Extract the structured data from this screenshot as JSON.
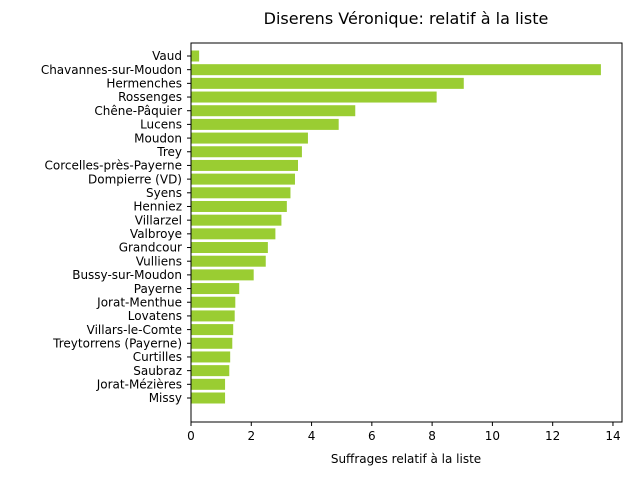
{
  "chart_data": {
    "type": "bar",
    "orientation": "horizontal",
    "title": "Diserens Véronique: relatif à la liste",
    "xlabel": "Suffrages relatif à la liste",
    "ylabel": "",
    "bar_color": "#9acd32",
    "xlim": [
      0,
      14.3
    ],
    "xticks": [
      0,
      2,
      4,
      6,
      8,
      10,
      12,
      14
    ],
    "grid": false,
    "categories": [
      "Vaud",
      "Chavannes-sur-Moudon",
      "Hermenches",
      "Rossenges",
      "Chêne-Pâquier",
      "Lucens",
      "Moudon",
      "Trey",
      "Corcelles-près-Payerne",
      "Dompierre (VD)",
      "Syens",
      "Henniez",
      "Villarzel",
      "Valbroye",
      "Grandcour",
      "Vulliens",
      "Bussy-sur-Moudon",
      "Payerne",
      "Jorat-Menthue",
      "Lovatens",
      "Villars-le-Comte",
      "Treytorrens (Payerne)",
      "Curtilles",
      "Saubraz",
      "Jorat-Mézières",
      "Missy"
    ],
    "values": [
      0.27,
      13.6,
      9.05,
      8.15,
      5.45,
      4.9,
      3.88,
      3.68,
      3.55,
      3.45,
      3.3,
      3.18,
      3.0,
      2.8,
      2.55,
      2.48,
      2.08,
      1.6,
      1.47,
      1.45,
      1.4,
      1.37,
      1.3,
      1.27,
      1.13,
      1.13
    ]
  }
}
